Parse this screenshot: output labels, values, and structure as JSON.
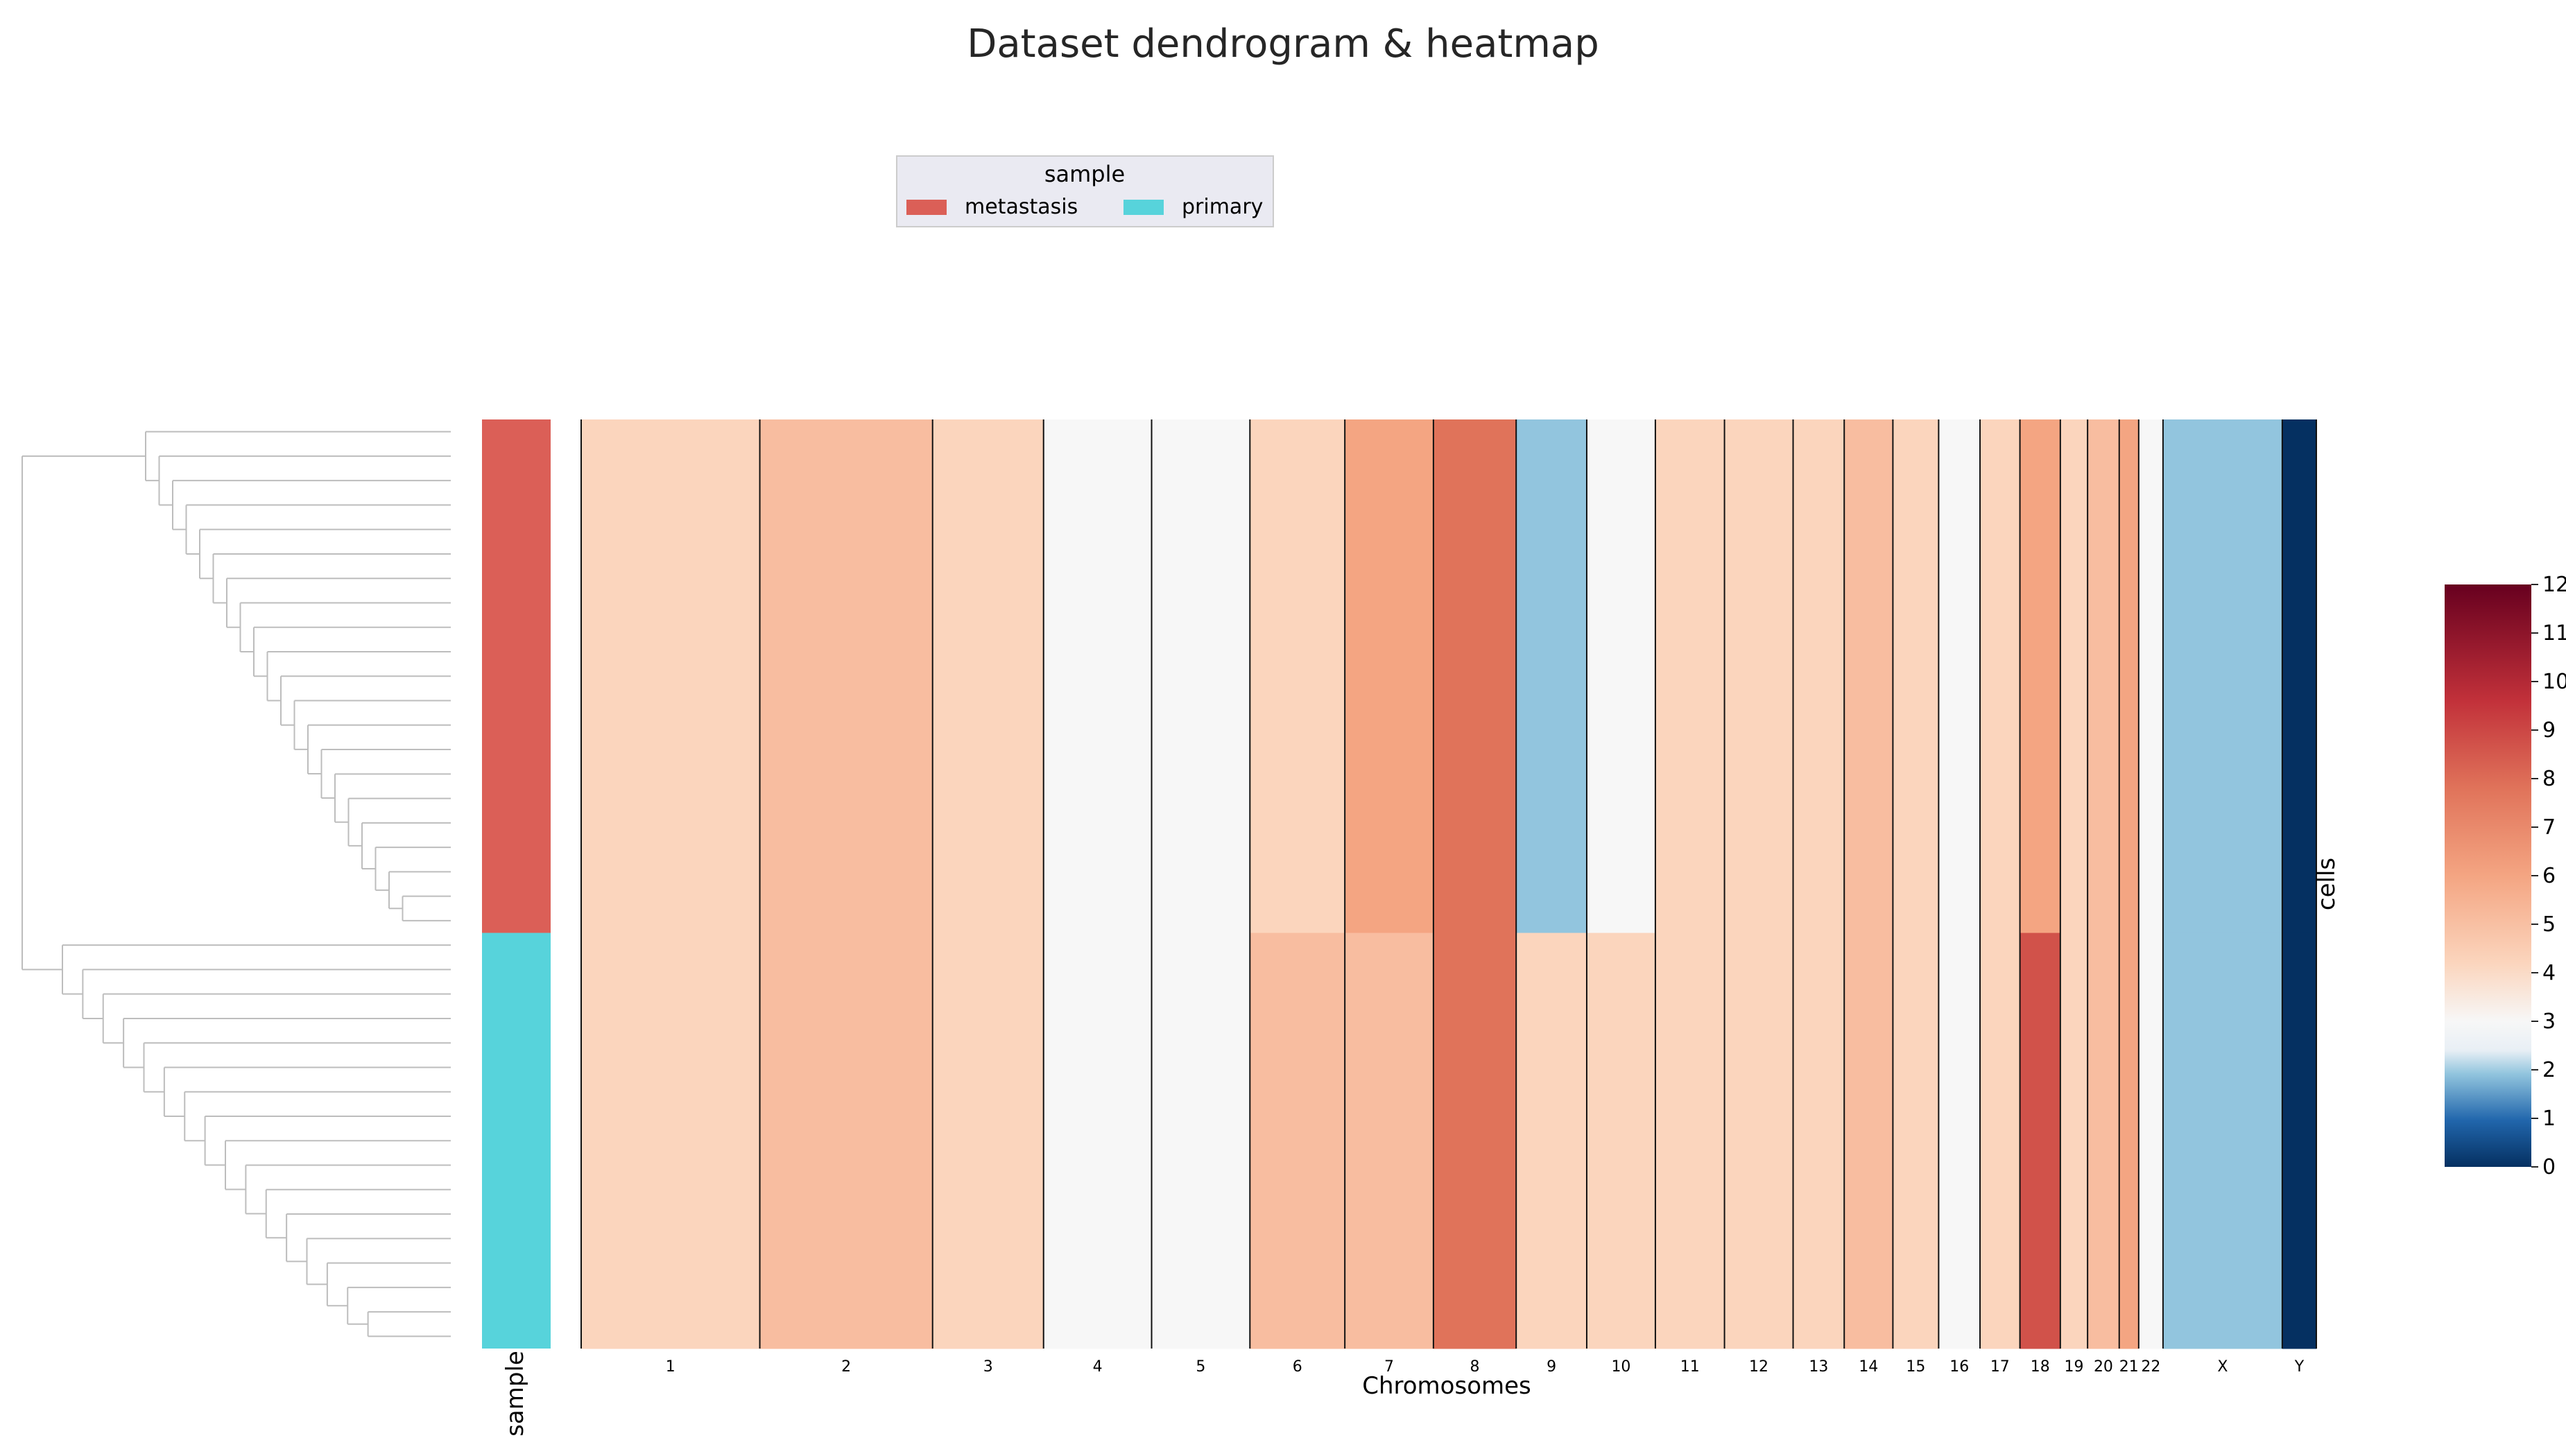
{
  "chart_data": {
    "type": "heatmap",
    "title": "Dataset dendrogram & heatmap",
    "xlabel": "Chromosomes",
    "ylabel": "cells",
    "annotation_label": "sample",
    "legend": {
      "title": "sample",
      "placement": "top-center",
      "entries": [
        {
          "label": "metastasis",
          "color": "#db5f57"
        },
        {
          "label": "primary",
          "color": "#57d3db"
        }
      ]
    },
    "chromosomes": [
      "1",
      "2",
      "3",
      "4",
      "5",
      "6",
      "7",
      "8",
      "9",
      "10",
      "11",
      "12",
      "13",
      "14",
      "15",
      "16",
      "17",
      "18",
      "19",
      "20",
      "21",
      "22",
      "X",
      "Y"
    ],
    "colorbar": {
      "min": 0,
      "max": 12,
      "ticks": [
        0,
        1,
        2,
        3,
        4,
        5,
        6,
        7,
        8,
        9,
        10,
        11,
        12
      ],
      "colormap": "RdBu_r"
    },
    "n_cells": 38,
    "sample_groups": [
      {
        "sample": "metastasis",
        "cells": 21,
        "color": "#db5f57"
      },
      {
        "sample": "primary",
        "cells": 17,
        "color": "#57d3db"
      }
    ],
    "copy_number_profile": [
      {
        "chromosome": "1",
        "metastasis": 4,
        "primary": 4
      },
      {
        "chromosome": "2",
        "metastasis": 5,
        "primary": 5
      },
      {
        "chromosome": "3",
        "metastasis": 4,
        "primary": 4
      },
      {
        "chromosome": "4",
        "metastasis": 3,
        "primary": 3
      },
      {
        "chromosome": "5",
        "metastasis": 3,
        "primary": 3
      },
      {
        "chromosome": "6",
        "metastasis": 4,
        "primary": 5
      },
      {
        "chromosome": "7",
        "metastasis": 6,
        "primary": 5
      },
      {
        "chromosome": "8",
        "metastasis": 8,
        "primary": 8
      },
      {
        "chromosome": "9",
        "metastasis": 2,
        "primary": 4
      },
      {
        "chromosome": "10",
        "metastasis": 3,
        "primary": 4
      },
      {
        "chromosome": "11",
        "metastasis": 4,
        "primary": 4
      },
      {
        "chromosome": "12",
        "metastasis": 4,
        "primary": 4
      },
      {
        "chromosome": "13",
        "metastasis": 4,
        "primary": 4
      },
      {
        "chromosome": "14",
        "metastasis": 5,
        "primary": 5
      },
      {
        "chromosome": "15",
        "metastasis": 4,
        "primary": 4
      },
      {
        "chromosome": "16",
        "metastasis": 3,
        "primary": 3
      },
      {
        "chromosome": "17",
        "metastasis": 4,
        "primary": 4
      },
      {
        "chromosome": "18",
        "metastasis": 6,
        "primary": 9
      },
      {
        "chromosome": "19",
        "metastasis": 4,
        "primary": 4
      },
      {
        "chromosome": "20",
        "metastasis": 5,
        "primary": 5
      },
      {
        "chromosome": "21",
        "metastasis": 6,
        "primary": 6
      },
      {
        "chromosome": "22",
        "metastasis": 3,
        "primary": 3
      },
      {
        "chromosome": "X",
        "metastasis": 2,
        "primary": 2
      },
      {
        "chromosome": "Y",
        "metastasis": 0,
        "primary": 0
      }
    ]
  }
}
